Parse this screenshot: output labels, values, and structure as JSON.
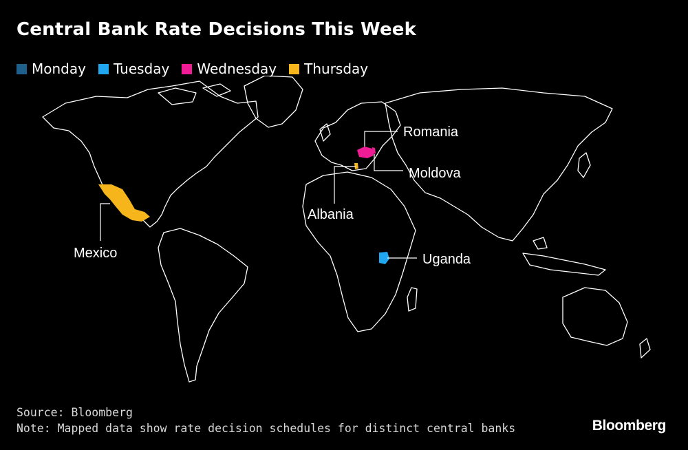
{
  "title": "Central Bank Rate Decisions This Week",
  "legend": [
    {
      "label": "Monday",
      "color": "#1f5f8b"
    },
    {
      "label": "Tuesday",
      "color": "#20a7f0"
    },
    {
      "label": "Wednesday",
      "color": "#ef1c96"
    },
    {
      "label": "Thursday",
      "color": "#f7b51c"
    }
  ],
  "countries": [
    {
      "name": "Mexico",
      "day": "Thursday",
      "color": "#f7b51c"
    },
    {
      "name": "Albania",
      "day": "Thursday",
      "color": "#f7b51c"
    },
    {
      "name": "Romania",
      "day": "Wednesday",
      "color": "#ef1c96"
    },
    {
      "name": "Moldova",
      "day": "Wednesday",
      "color": "#ef1c96"
    },
    {
      "name": "Uganda",
      "day": "Tuesday",
      "color": "#20a7f0"
    }
  ],
  "footer": {
    "source": "Source: Bloomberg",
    "note": "Note: Mapped data show rate decision schedules for distinct central banks"
  },
  "brand": "Bloomberg"
}
